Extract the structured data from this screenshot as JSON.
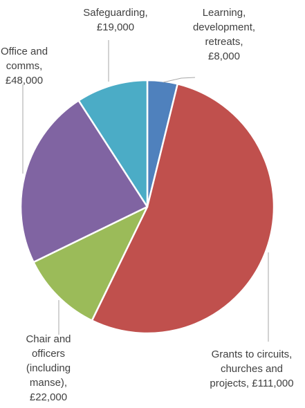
{
  "chart_data": {
    "type": "pie",
    "title": "",
    "currency": "£",
    "slices": [
      {
        "name": "Learning, development, retreats",
        "value": 8000,
        "color": "#4f81bd",
        "label_lines": [
          "Learning,",
          "development,",
          "retreats,",
          "£8,000"
        ]
      },
      {
        "name": "Grants to circuits, churches and projects",
        "value": 111000,
        "color": "#c0504d",
        "label_lines": [
          "Grants to circuits,",
          "churches and",
          "projects, £111,000"
        ]
      },
      {
        "name": "Chair and officers (including manse)",
        "value": 22000,
        "color": "#9bbb59",
        "label_lines": [
          "Chair and",
          "officers",
          "(including",
          "manse),",
          "£22,000"
        ]
      },
      {
        "name": "Office and comms",
        "value": 48000,
        "color": "#8064a2",
        "label_lines": [
          "Office and",
          "comms,",
          "£48,000"
        ]
      },
      {
        "name": "Safeguarding",
        "value": 19000,
        "color": "#4bacc6",
        "label_lines": [
          "Safeguarding,",
          "£19,000"
        ]
      }
    ]
  }
}
